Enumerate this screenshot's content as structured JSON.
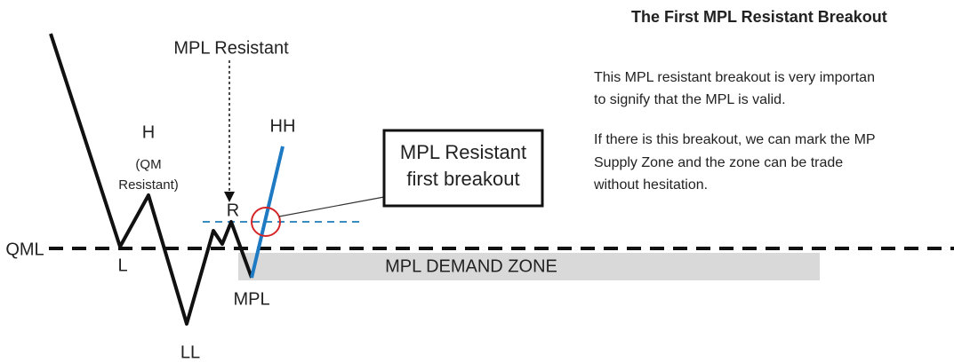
{
  "diagram": {
    "title": "The First MPL Resistant Breakout",
    "paragraphs": [
      [
        "This MPL resistant breakout is very importan",
        "to signify that the MPL is valid."
      ],
      [
        "If there is this breakout, we can mark the MP",
        "Supply Zone and the zone can be trade",
        "without hesitation."
      ]
    ],
    "labels": {
      "mpl_resistant": "MPL Resistant",
      "hh": "HH",
      "h": "H",
      "qm_resistant": [
        "(QM",
        "Resistant)"
      ],
      "r": "R",
      "l": "L",
      "ll": "LL",
      "mpl": "MPL",
      "qml": "QML",
      "zone": "MPL DEMAND ZONE"
    },
    "callout": [
      "MPL Resistant",
      "first breakout"
    ]
  }
}
